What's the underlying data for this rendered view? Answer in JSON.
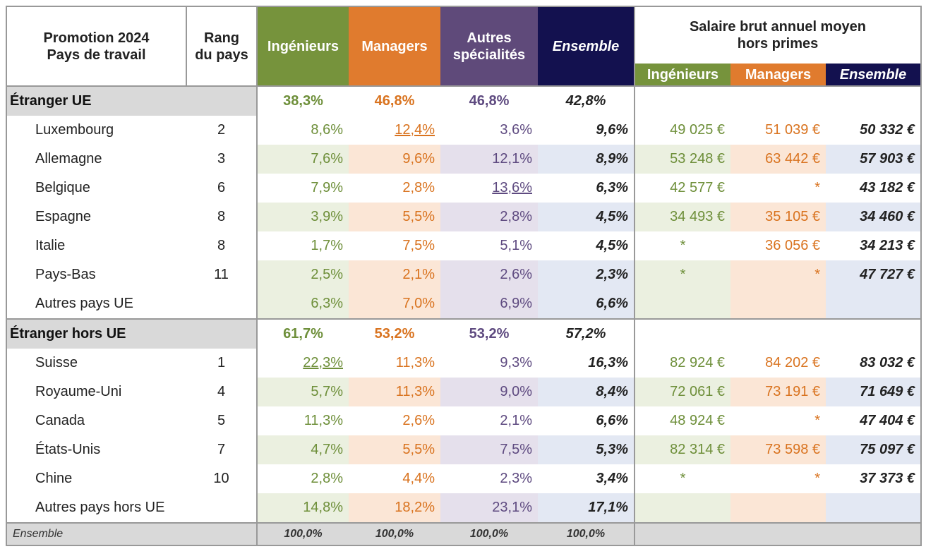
{
  "header": {
    "col0": [
      "Promotion 2024",
      "Pays de travail"
    ],
    "col1": [
      "Rang",
      "du pays"
    ],
    "ing": "Ingénieurs",
    "man": "Managers",
    "aut": [
      "Autres",
      "spécialités"
    ],
    "ens": "Ensemble",
    "salary_title": [
      "Salaire brut annuel moyen",
      "hors primes"
    ],
    "sal_ing": "Ingénieurs",
    "sal_man": "Managers",
    "sal_ens": "Ensemble"
  },
  "groups": [
    {
      "label": "Étranger UE",
      "ing": "38,3%",
      "man": "46,8%",
      "aut": "46,8%",
      "ens": "42,8%",
      "rows": [
        {
          "country": "Luxembourg",
          "rank": "2",
          "ing": "8,6%",
          "man": "12,4%",
          "aut": "3,6%",
          "ens": "9,6%",
          "s_ing": "49 025 €",
          "s_man": "51 039 €",
          "s_ens": "50 332 €"
        },
        {
          "country": "Allemagne",
          "rank": "3",
          "ing": "7,6%",
          "man": "9,6%",
          "aut": "12,1%",
          "ens": "8,9%",
          "s_ing": "53 248 €",
          "s_man": "63 442 €",
          "s_ens": "57 903 €"
        },
        {
          "country": "Belgique",
          "rank": "6",
          "ing": "7,9%",
          "man": "2,8%",
          "aut": "13,6%",
          "ens": "6,3%",
          "s_ing": "42 577 €",
          "s_man": "*",
          "s_ens": "43 182 €"
        },
        {
          "country": "Espagne",
          "rank": "8",
          "ing": "3,9%",
          "man": "5,5%",
          "aut": "2,8%",
          "ens": "4,5%",
          "s_ing": "34 493 €",
          "s_man": "35 105 €",
          "s_ens": "34 460 €"
        },
        {
          "country": "Italie",
          "rank": "8",
          "ing": "1,7%",
          "man": "7,5%",
          "aut": "5,1%",
          "ens": "4,5%",
          "s_ing": "*",
          "s_man": "36 056 €",
          "s_ens": "34 213 €"
        },
        {
          "country": "Pays-Bas",
          "rank": "11",
          "ing": "2,5%",
          "man": "2,1%",
          "aut": "2,6%",
          "ens": "2,3%",
          "s_ing": "*",
          "s_man": "*",
          "s_ens": "47 727 €"
        },
        {
          "country": "Autres pays UE",
          "rank": "",
          "ing": "6,3%",
          "man": "7,0%",
          "aut": "6,9%",
          "ens": "6,6%",
          "s_ing": "",
          "s_man": "",
          "s_ens": ""
        }
      ]
    },
    {
      "label": "Étranger hors UE",
      "ing": "61,7%",
      "man": "53,2%",
      "aut": "53,2%",
      "ens": "57,2%",
      "rows": [
        {
          "country": "Suisse",
          "rank": "1",
          "ing": "22,3%",
          "man": "11,3%",
          "aut": "9,3%",
          "ens": "16,3%",
          "s_ing": "82 924 €",
          "s_man": "84 202 €",
          "s_ens": "83 032 €"
        },
        {
          "country": "Royaume-Uni",
          "rank": "4",
          "ing": "5,7%",
          "man": "11,3%",
          "aut": "9,0%",
          "ens": "8,4%",
          "s_ing": "72 061 €",
          "s_man": "73 191 €",
          "s_ens": "71 649 €"
        },
        {
          "country": "Canada",
          "rank": "5",
          "ing": "11,3%",
          "man": "2,6%",
          "aut": "2,1%",
          "ens": "6,6%",
          "s_ing": "48 924 €",
          "s_man": "*",
          "s_ens": "47 404 €"
        },
        {
          "country": "États-Unis",
          "rank": "7",
          "ing": "4,7%",
          "man": "5,5%",
          "aut": "7,5%",
          "ens": "5,3%",
          "s_ing": "82 314 €",
          "s_man": "73 598 €",
          "s_ens": "75 097 €"
        },
        {
          "country": "Chine",
          "rank": "10",
          "ing": "2,8%",
          "man": "4,4%",
          "aut": "2,3%",
          "ens": "3,4%",
          "s_ing": "*",
          "s_man": "*",
          "s_ens": "37 373 €"
        },
        {
          "country": "Autres pays hors UE",
          "rank": "",
          "ing": "14,8%",
          "man": "18,2%",
          "aut": "23,1%",
          "ens": "17,1%",
          "s_ing": "",
          "s_man": "",
          "s_ens": ""
        }
      ]
    }
  ],
  "total": {
    "label": "Ensemble",
    "ing": "100,0%",
    "man": "100,0%",
    "aut": "100,0%",
    "ens": "100,0%"
  },
  "colors": {
    "ingenieurs": "#76933c",
    "managers": "#e07b2e",
    "autres": "#5f4a7a",
    "ensemble": "#13114f"
  }
}
